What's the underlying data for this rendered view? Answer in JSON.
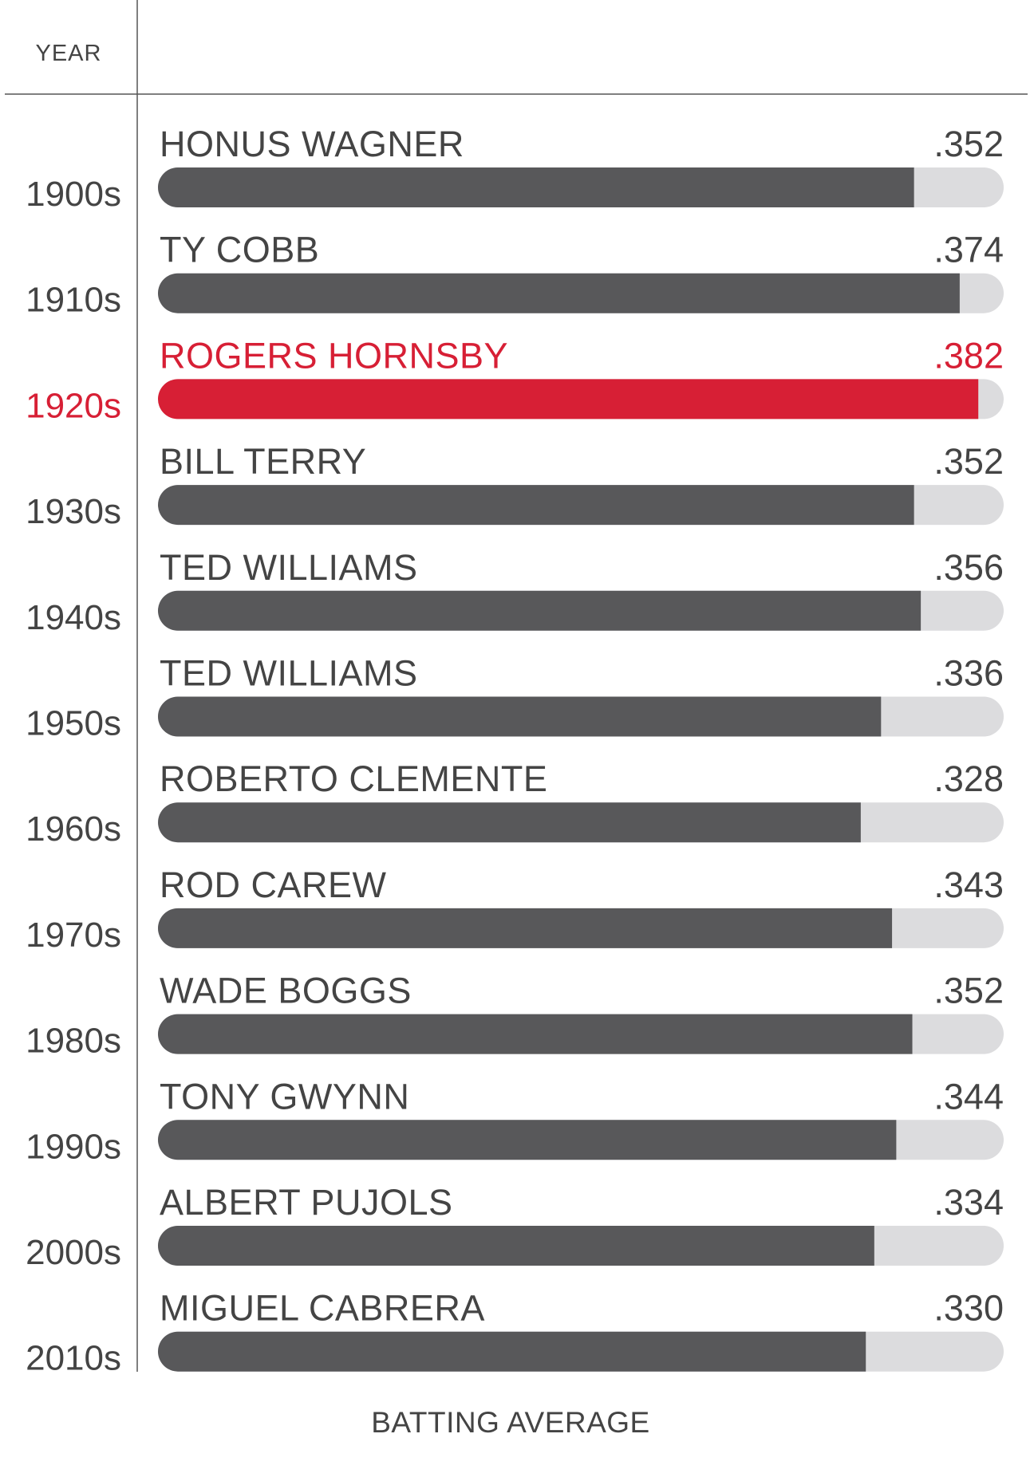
{
  "chart_data": {
    "type": "bar",
    "orientation": "horizontal",
    "header_label": "YEAR",
    "xlabel": "BATTING AVERAGE",
    "categories": [
      "1900s",
      "1910s",
      "1920s",
      "1930s",
      "1940s",
      "1950s",
      "1960s",
      "1970s",
      "1980s",
      "1990s",
      "2000s",
      "2010s"
    ],
    "players": [
      "HONUS WAGNER",
      "TY COBB",
      "ROGERS HORNSBY",
      "BILL TERRY",
      "TED WILLIAMS",
      "TED WILLIAMS",
      "ROBERTO CLEMENTE",
      "ROD CAREW",
      "WADE BOGGS",
      "TONY GWYNN",
      "ALBERT PUJOLS",
      "MIGUEL CABRERA"
    ],
    "value_labels": [
      ".352",
      ".374",
      ".382",
      ".352",
      ".356",
      ".336",
      ".328",
      ".343",
      ".352",
      ".344",
      ".334",
      ".330"
    ],
    "values": [
      0.352,
      0.374,
      0.382,
      0.352,
      0.356,
      0.336,
      0.328,
      0.343,
      0.352,
      0.344,
      0.334,
      0.33
    ],
    "fill_fraction": [
      0.894,
      0.948,
      0.97,
      0.894,
      0.902,
      0.855,
      0.831,
      0.868,
      0.892,
      0.873,
      0.847,
      0.837
    ],
    "highlight_index": 2,
    "colors": {
      "bar": "#58585a",
      "track": "#dcdcde",
      "highlight": "#d71f35",
      "text": "#444444",
      "rule": "#555555"
    }
  }
}
